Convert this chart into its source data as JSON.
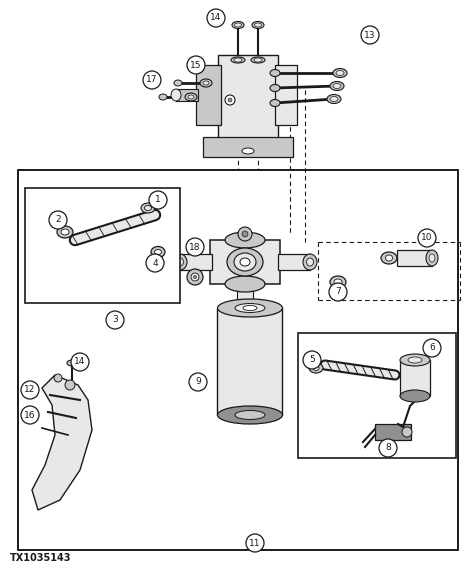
{
  "bg_color": "#ffffff",
  "line_color": "#1a1a1a",
  "fig_label": "TX1035143",
  "fig_width": 4.74,
  "fig_height": 5.73,
  "dpi": 100,
  "gray_light": "#e8e8e8",
  "gray_mid": "#c8c8c8",
  "gray_dark": "#909090"
}
